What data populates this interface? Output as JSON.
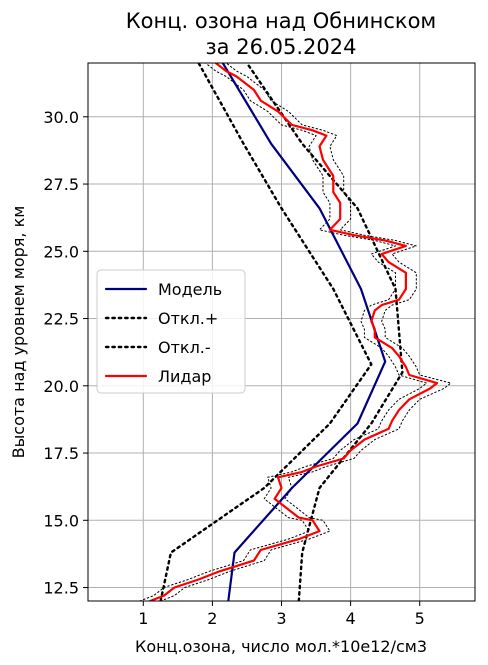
{
  "chart_data": {
    "type": "line",
    "title_line1": "Конц. озона над Обнинском",
    "title_line2": "за 26.05.2024",
    "xlabel": "Конц.озона, число мол.*10e12/см3",
    "ylabel": "Высота над уровнем моря, км",
    "xlim": [
      0.2,
      5.8
    ],
    "ylim": [
      12.0,
      32.0
    ],
    "xticks": [
      "1",
      "2",
      "3",
      "4",
      "5"
    ],
    "yticks": [
      "12.5",
      "15.0",
      "17.5",
      "20.0",
      "22.5",
      "25.0",
      "27.5",
      "30.0"
    ],
    "grid": true,
    "legend_position": "center-left",
    "series": [
      {
        "name": "Модель",
        "color": "#00007f",
        "style": "solid",
        "points": [
          [
            2.23,
            12.0
          ],
          [
            2.32,
            13.8
          ],
          [
            3.15,
            16.2
          ],
          [
            4.1,
            18.6
          ],
          [
            4.5,
            20.9
          ],
          [
            4.15,
            23.6
          ],
          [
            3.55,
            26.6
          ],
          [
            2.85,
            29.0
          ],
          [
            2.15,
            32.0
          ]
        ]
      },
      {
        "name": "Откл.+",
        "color": "#000000",
        "style": "dotted",
        "points": [
          [
            3.25,
            12.0
          ],
          [
            3.3,
            13.8
          ],
          [
            3.55,
            16.2
          ],
          [
            4.3,
            18.6
          ],
          [
            4.75,
            20.5
          ],
          [
            4.65,
            23.6
          ],
          [
            4.1,
            26.6
          ],
          [
            3.3,
            29.0
          ],
          [
            2.5,
            32.0
          ]
        ]
      },
      {
        "name": "Откл.-",
        "color": "#000000",
        "style": "dotted",
        "points": [
          [
            1.25,
            12.0
          ],
          [
            1.4,
            13.8
          ],
          [
            2.75,
            16.2
          ],
          [
            3.7,
            18.6
          ],
          [
            4.3,
            20.8
          ],
          [
            3.75,
            23.6
          ],
          [
            3.0,
            26.6
          ],
          [
            2.45,
            29.0
          ],
          [
            1.8,
            32.0
          ]
        ]
      },
      {
        "name": "Лидар",
        "color": "#ff0000",
        "style": "solid",
        "points": [
          [
            1.1,
            12.0
          ],
          [
            1.3,
            12.2
          ],
          [
            1.45,
            12.5
          ],
          [
            1.8,
            12.8
          ],
          [
            2.1,
            13.1
          ],
          [
            2.6,
            13.5
          ],
          [
            2.7,
            13.9
          ],
          [
            3.25,
            14.3
          ],
          [
            3.55,
            14.6
          ],
          [
            3.45,
            15.0
          ],
          [
            3.25,
            15.1
          ],
          [
            3.1,
            15.4
          ],
          [
            2.9,
            15.8
          ],
          [
            3.0,
            16.2
          ],
          [
            2.95,
            16.6
          ],
          [
            3.3,
            16.8
          ],
          [
            3.5,
            17.0
          ],
          [
            3.9,
            17.3
          ],
          [
            4.0,
            17.6
          ],
          [
            4.2,
            18.0
          ],
          [
            4.55,
            18.4
          ],
          [
            4.6,
            18.7
          ],
          [
            4.7,
            19.1
          ],
          [
            4.85,
            19.5
          ],
          [
            5.15,
            19.9
          ],
          [
            5.25,
            20.1
          ],
          [
            4.85,
            20.4
          ],
          [
            4.8,
            20.7
          ],
          [
            4.7,
            21.1
          ],
          [
            4.6,
            21.4
          ],
          [
            4.35,
            21.8
          ],
          [
            4.35,
            22.1
          ],
          [
            4.3,
            22.4
          ],
          [
            4.35,
            22.8
          ],
          [
            4.45,
            23.0
          ],
          [
            4.7,
            23.2
          ],
          [
            4.8,
            23.6
          ],
          [
            4.8,
            24.2
          ],
          [
            4.55,
            24.6
          ],
          [
            4.45,
            24.9
          ],
          [
            4.8,
            25.2
          ],
          [
            4.5,
            25.4
          ],
          [
            4.05,
            25.6
          ],
          [
            3.7,
            25.8
          ],
          [
            3.85,
            26.2
          ],
          [
            3.85,
            26.8
          ],
          [
            3.75,
            27.2
          ],
          [
            3.75,
            27.8
          ],
          [
            3.6,
            28.4
          ],
          [
            3.55,
            28.9
          ],
          [
            3.65,
            29.3
          ],
          [
            3.45,
            29.5
          ],
          [
            3.15,
            29.7
          ],
          [
            2.95,
            30.2
          ],
          [
            2.7,
            30.6
          ],
          [
            2.6,
            31.0
          ],
          [
            2.35,
            31.5
          ],
          [
            2.2,
            31.7
          ],
          [
            2.05,
            32.0
          ]
        ]
      },
      {
        "name": "",
        "color": "#000000",
        "style": "dotted-thin",
        "points": [
          [
            1.25,
            12.0
          ],
          [
            1.45,
            12.2
          ],
          [
            1.6,
            12.5
          ],
          [
            1.95,
            12.8
          ],
          [
            2.25,
            13.1
          ],
          [
            2.75,
            13.5
          ],
          [
            2.85,
            13.9
          ],
          [
            3.4,
            14.3
          ],
          [
            3.7,
            14.6
          ],
          [
            3.6,
            15.0
          ],
          [
            3.4,
            15.1
          ],
          [
            3.25,
            15.4
          ],
          [
            3.05,
            15.8
          ],
          [
            3.15,
            16.2
          ],
          [
            3.1,
            16.6
          ],
          [
            3.45,
            16.8
          ],
          [
            3.65,
            17.0
          ],
          [
            4.05,
            17.3
          ],
          [
            4.15,
            17.6
          ],
          [
            4.35,
            18.0
          ],
          [
            4.7,
            18.4
          ],
          [
            4.75,
            18.7
          ],
          [
            4.85,
            19.1
          ],
          [
            5.0,
            19.5
          ],
          [
            5.35,
            19.9
          ],
          [
            5.45,
            20.1
          ],
          [
            5.0,
            20.4
          ],
          [
            4.95,
            20.7
          ],
          [
            4.85,
            21.1
          ],
          [
            4.75,
            21.4
          ],
          [
            4.5,
            21.8
          ],
          [
            4.5,
            22.1
          ],
          [
            4.45,
            22.4
          ],
          [
            4.5,
            22.8
          ],
          [
            4.6,
            23.0
          ],
          [
            4.85,
            23.2
          ],
          [
            4.95,
            23.6
          ],
          [
            4.95,
            24.2
          ],
          [
            4.7,
            24.6
          ],
          [
            4.6,
            24.9
          ],
          [
            4.95,
            25.2
          ],
          [
            4.65,
            25.4
          ],
          [
            4.2,
            25.6
          ],
          [
            3.85,
            25.8
          ],
          [
            4.0,
            26.2
          ],
          [
            4.0,
            26.8
          ],
          [
            3.9,
            27.2
          ],
          [
            3.9,
            27.8
          ],
          [
            3.75,
            28.4
          ],
          [
            3.7,
            28.9
          ],
          [
            3.8,
            29.3
          ],
          [
            3.6,
            29.5
          ],
          [
            3.3,
            29.7
          ],
          [
            3.1,
            30.2
          ],
          [
            2.85,
            30.6
          ],
          [
            2.75,
            31.0
          ],
          [
            2.5,
            31.5
          ],
          [
            2.35,
            31.7
          ],
          [
            2.2,
            32.0
          ]
        ]
      },
      {
        "name": "",
        "color": "#000000",
        "style": "dotted-thin",
        "points": [
          [
            0.95,
            12.0
          ],
          [
            1.15,
            12.2
          ],
          [
            1.3,
            12.5
          ],
          [
            1.65,
            12.8
          ],
          [
            1.95,
            13.1
          ],
          [
            2.45,
            13.5
          ],
          [
            2.55,
            13.9
          ],
          [
            3.1,
            14.3
          ],
          [
            3.4,
            14.6
          ],
          [
            3.3,
            15.0
          ],
          [
            3.1,
            15.1
          ],
          [
            2.95,
            15.4
          ],
          [
            2.75,
            15.8
          ],
          [
            2.85,
            16.2
          ],
          [
            2.8,
            16.6
          ],
          [
            3.15,
            16.8
          ],
          [
            3.35,
            17.0
          ],
          [
            3.75,
            17.3
          ],
          [
            3.85,
            17.6
          ],
          [
            4.05,
            18.0
          ],
          [
            4.4,
            18.4
          ],
          [
            4.45,
            18.7
          ],
          [
            4.55,
            19.1
          ],
          [
            4.7,
            19.5
          ],
          [
            5.0,
            19.9
          ],
          [
            5.1,
            20.1
          ],
          [
            4.7,
            20.4
          ],
          [
            4.65,
            20.7
          ],
          [
            4.55,
            21.1
          ],
          [
            4.45,
            21.4
          ],
          [
            4.2,
            21.8
          ],
          [
            4.2,
            22.1
          ],
          [
            4.15,
            22.4
          ],
          [
            4.2,
            22.8
          ],
          [
            4.3,
            23.0
          ],
          [
            4.55,
            23.2
          ],
          [
            4.65,
            23.6
          ],
          [
            4.65,
            24.2
          ],
          [
            4.4,
            24.6
          ],
          [
            4.3,
            24.9
          ],
          [
            4.65,
            25.2
          ],
          [
            4.35,
            25.4
          ],
          [
            3.9,
            25.6
          ],
          [
            3.55,
            25.8
          ],
          [
            3.7,
            26.2
          ],
          [
            3.7,
            26.8
          ],
          [
            3.6,
            27.2
          ],
          [
            3.6,
            27.8
          ],
          [
            3.45,
            28.4
          ],
          [
            3.4,
            28.9
          ],
          [
            3.5,
            29.3
          ],
          [
            3.3,
            29.5
          ],
          [
            3.0,
            29.7
          ],
          [
            2.8,
            30.2
          ],
          [
            2.55,
            30.6
          ],
          [
            2.45,
            31.0
          ],
          [
            2.2,
            31.5
          ],
          [
            2.05,
            31.7
          ],
          [
            1.9,
            32.0
          ]
        ]
      }
    ]
  }
}
